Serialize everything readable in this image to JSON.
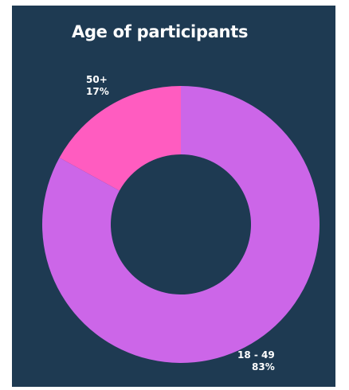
{
  "chart_data": {
    "type": "pie",
    "donut": true,
    "title": "Age of participants",
    "categories": [
      "50+",
      "18 - 49"
    ],
    "values": [
      17,
      83
    ],
    "value_labels": [
      "17%",
      "83%"
    ],
    "colors": [
      "#ff5cc0",
      "#cc66e8"
    ],
    "background": "#1e3a52",
    "legend": "none"
  }
}
